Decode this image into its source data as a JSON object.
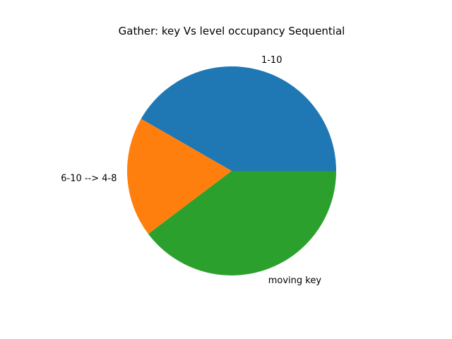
{
  "chart_data": {
    "type": "pie",
    "title": "Gather: key Vs level occupancy Sequential",
    "labels": [
      "1-10",
      "6-10 --> 4-8",
      "moving key"
    ],
    "values": [
      41.7,
      18.6,
      39.7
    ],
    "colors": [
      "#1f77b4",
      "#ff7f0e",
      "#2ca02c"
    ],
    "start_angle_deg": 0,
    "direction": "counterclockwise",
    "legend": "none"
  }
}
